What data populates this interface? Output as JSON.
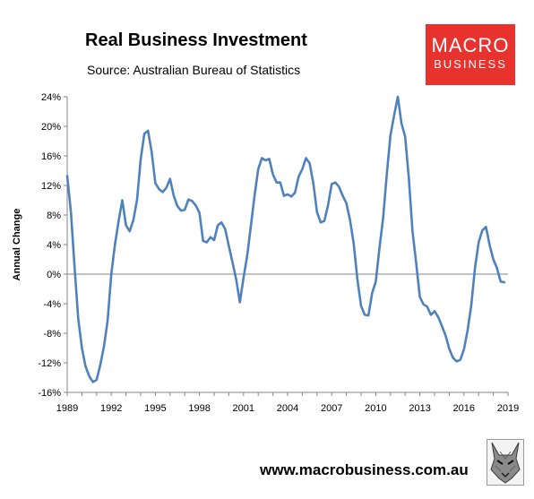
{
  "header": {
    "title": "Real Business Investment",
    "subtitle": "Source: Australian Bureau of Statistics"
  },
  "logo": {
    "line1": "MACRO",
    "line2": "BUSINESS"
  },
  "footer": {
    "url": "www.macrobusiness.com.au"
  },
  "chart_data": {
    "type": "line",
    "title": "Real Business Investment",
    "subtitle": "Source: Australian Bureau of Statistics",
    "xlabel": "",
    "ylabel": "Annual Change",
    "xlim": [
      1989,
      2019
    ],
    "ylim": [
      -16,
      24
    ],
    "x_ticks": [
      "1989",
      "1992",
      "1995",
      "1998",
      "2001",
      "2004",
      "2007",
      "2010",
      "2013",
      "2016",
      "2019"
    ],
    "y_ticks": [
      "24%",
      "20%",
      "16%",
      "12%",
      "8%",
      "4%",
      "0%",
      "-4%",
      "-8%",
      "-12%",
      "-16%"
    ],
    "grid": false,
    "line_color": "#4f81bd",
    "series": [
      {
        "values": [
          [
            1989.0,
            13.3
          ],
          [
            1989.25,
            8.5
          ],
          [
            1989.5,
            1.0
          ],
          [
            1989.75,
            -6.0
          ],
          [
            1990.0,
            -10.0
          ],
          [
            1990.25,
            -12.5
          ],
          [
            1990.5,
            -13.8
          ],
          [
            1990.75,
            -14.6
          ],
          [
            1991.0,
            -14.3
          ],
          [
            1991.25,
            -12.3
          ],
          [
            1991.5,
            -9.8
          ],
          [
            1991.75,
            -6.3
          ],
          [
            1992.0,
            0.0
          ],
          [
            1992.25,
            4.0
          ],
          [
            1992.5,
            7.2
          ],
          [
            1992.75,
            10.0
          ],
          [
            1993.0,
            6.6
          ],
          [
            1993.25,
            5.8
          ],
          [
            1993.5,
            7.3
          ],
          [
            1993.75,
            10.0
          ],
          [
            1994.0,
            15.5
          ],
          [
            1994.25,
            19.0
          ],
          [
            1994.5,
            19.4
          ],
          [
            1994.75,
            16.5
          ],
          [
            1995.0,
            12.3
          ],
          [
            1995.25,
            11.5
          ],
          [
            1995.5,
            11.1
          ],
          [
            1995.75,
            11.7
          ],
          [
            1996.0,
            12.9
          ],
          [
            1996.25,
            10.6
          ],
          [
            1996.5,
            9.2
          ],
          [
            1996.75,
            8.6
          ],
          [
            1997.0,
            8.7
          ],
          [
            1997.25,
            10.1
          ],
          [
            1997.5,
            9.9
          ],
          [
            1997.75,
            9.3
          ],
          [
            1998.0,
            8.3
          ],
          [
            1998.25,
            4.5
          ],
          [
            1998.5,
            4.3
          ],
          [
            1998.75,
            5.0
          ],
          [
            1999.0,
            4.6
          ],
          [
            1999.25,
            6.6
          ],
          [
            1999.5,
            7.0
          ],
          [
            1999.75,
            6.1
          ],
          [
            2000.0,
            3.8
          ],
          [
            2000.25,
            1.6
          ],
          [
            2000.5,
            -0.7
          ],
          [
            2000.75,
            -3.8
          ],
          [
            2001.0,
            -0.5
          ],
          [
            2001.25,
            2.5
          ],
          [
            2001.5,
            6.5
          ],
          [
            2001.75,
            10.6
          ],
          [
            2002.0,
            14.2
          ],
          [
            2002.25,
            15.7
          ],
          [
            2002.5,
            15.4
          ],
          [
            2002.75,
            15.6
          ],
          [
            2003.0,
            13.5
          ],
          [
            2003.25,
            12.4
          ],
          [
            2003.5,
            12.4
          ],
          [
            2003.75,
            10.6
          ],
          [
            2004.0,
            10.8
          ],
          [
            2004.25,
            10.5
          ],
          [
            2004.5,
            11.0
          ],
          [
            2004.75,
            13.2
          ],
          [
            2005.0,
            14.2
          ],
          [
            2005.25,
            15.7
          ],
          [
            2005.5,
            15.0
          ],
          [
            2005.75,
            12.3
          ],
          [
            2006.0,
            8.4
          ],
          [
            2006.25,
            7.0
          ],
          [
            2006.5,
            7.2
          ],
          [
            2006.75,
            9.3
          ],
          [
            2007.0,
            12.2
          ],
          [
            2007.25,
            12.4
          ],
          [
            2007.5,
            11.8
          ],
          [
            2007.75,
            10.6
          ],
          [
            2008.0,
            9.6
          ],
          [
            2008.25,
            7.3
          ],
          [
            2008.5,
            4.1
          ],
          [
            2008.75,
            -0.7
          ],
          [
            2009.0,
            -4.3
          ],
          [
            2009.25,
            -5.5
          ],
          [
            2009.5,
            -5.6
          ],
          [
            2009.75,
            -2.6
          ],
          [
            2010.0,
            -1.0
          ],
          [
            2010.25,
            3.5
          ],
          [
            2010.5,
            7.6
          ],
          [
            2010.75,
            13.5
          ],
          [
            2011.0,
            18.8
          ],
          [
            2011.25,
            21.5
          ],
          [
            2011.5,
            24.0
          ],
          [
            2011.75,
            20.4
          ],
          [
            2012.0,
            18.6
          ],
          [
            2012.25,
            13.0
          ],
          [
            2012.5,
            5.8
          ],
          [
            2012.75,
            1.5
          ],
          [
            2013.0,
            -3.1
          ],
          [
            2013.25,
            -4.1
          ],
          [
            2013.5,
            -4.4
          ],
          [
            2013.75,
            -5.5
          ],
          [
            2014.0,
            -5.0
          ],
          [
            2014.25,
            -5.8
          ],
          [
            2014.5,
            -7.0
          ],
          [
            2014.75,
            -8.3
          ],
          [
            2015.0,
            -10.1
          ],
          [
            2015.25,
            -11.3
          ],
          [
            2015.5,
            -11.8
          ],
          [
            2015.75,
            -11.6
          ],
          [
            2016.0,
            -10.2
          ],
          [
            2016.25,
            -7.6
          ],
          [
            2016.5,
            -4.2
          ],
          [
            2016.75,
            0.8
          ],
          [
            2017.0,
            4.3
          ],
          [
            2017.25,
            5.9
          ],
          [
            2017.5,
            6.4
          ],
          [
            2017.75,
            3.9
          ],
          [
            2018.0,
            2.0
          ],
          [
            2018.25,
            0.8
          ],
          [
            2018.5,
            -1.0
          ],
          [
            2018.75,
            -1.1
          ]
        ]
      }
    ]
  }
}
